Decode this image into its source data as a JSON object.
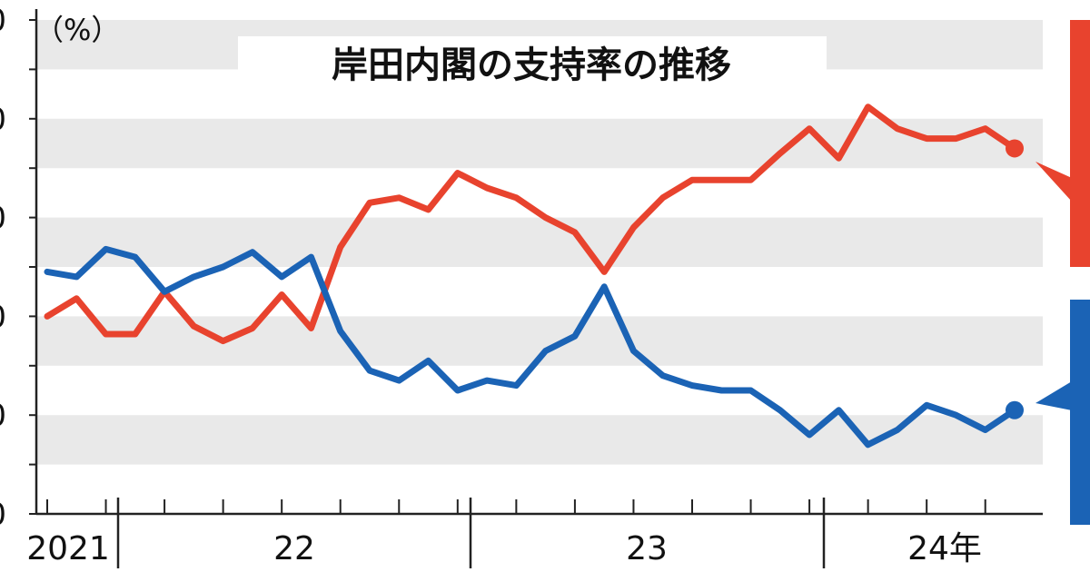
{
  "chart_data": {
    "type": "line",
    "title": "岸田内閣の支持率の推移",
    "unit_label": "（%）",
    "y_tick_labels": [
      "0",
      "0",
      "0",
      "0",
      "0",
      "0"
    ],
    "year_labels": [
      "2021",
      "22",
      "23",
      "24年"
    ],
    "ylim": [
      10,
      60
    ],
    "grid": "horizontal bands",
    "series": [
      {
        "color": "#e8432e",
        "values": [
          30,
          31.8,
          28.2,
          28.2,
          32.5,
          29,
          27.5,
          28.8,
          32.2,
          28.8,
          37,
          41.5,
          42,
          40.8,
          44.5,
          43,
          42,
          40,
          38.5,
          34.5,
          39,
          42,
          43.8,
          43.8,
          43.8,
          46.5,
          49,
          46,
          51.2,
          49,
          48,
          48,
          49,
          47
        ]
      },
      {
        "color": "#1b63b5",
        "values": [
          34.5,
          34,
          36.8,
          36,
          32.5,
          34,
          35,
          36.5,
          34,
          36,
          28.5,
          24.5,
          23.5,
          25.5,
          22.5,
          23.5,
          23,
          26.5,
          28,
          33,
          26.5,
          24,
          23,
          22.5,
          22.5,
          20.5,
          18,
          20.5,
          17,
          18.5,
          21,
          20,
          18.5,
          20.5
        ]
      }
    ]
  }
}
